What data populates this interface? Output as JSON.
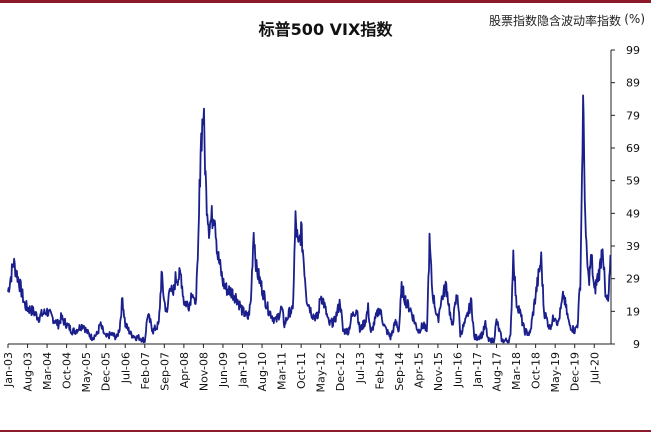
{
  "chart_data": {
    "type": "line",
    "title": "标普500 VIX指数",
    "subtitle": "股票指数隐含波动率指数",
    "unit": "(%)",
    "xlabel": "",
    "ylabel": "",
    "ylim": [
      9,
      99
    ],
    "yticks": [
      9,
      19,
      29,
      39,
      49,
      59,
      69,
      79,
      89,
      99
    ],
    "x_tick_labels": [
      "Jan-03",
      "Aug-03",
      "Mar-04",
      "Oct-04",
      "May-05",
      "Dec-05",
      "Jul-06",
      "Feb-07",
      "Sep-07",
      "Apr-08",
      "Nov-08",
      "Jun-09",
      "Jan-10",
      "Aug-10",
      "Mar-11",
      "Oct-11",
      "May-12",
      "Dec-12",
      "Jul-13",
      "Feb-14",
      "Sep-14",
      "Apr-15",
      "Nov-15",
      "Jun-16",
      "Jan-17",
      "Aug-17",
      "Mar-18",
      "Oct-18",
      "May-19",
      "Dec-19",
      "Jul-20"
    ],
    "grid": false,
    "legend": "none",
    "colors": {
      "line": "#1a1f8c",
      "axis": "#222222",
      "accent": "#8b1a2a"
    },
    "series": [
      {
        "values": [
          [
            "Jan-03",
            25
          ],
          [
            "Mar-03",
            34
          ],
          [
            "May-03",
            28
          ],
          [
            "Jul-03",
            21
          ],
          [
            "Aug-03",
            20
          ],
          [
            "Oct-03",
            19
          ],
          [
            "Dec-03",
            17
          ],
          [
            "Jan-04",
            18
          ],
          [
            "Mar-04",
            19
          ],
          [
            "May-04",
            17
          ],
          [
            "Jul-04",
            15
          ],
          [
            "Aug-04",
            17
          ],
          [
            "Oct-04",
            15
          ],
          [
            "Dec-04",
            13
          ],
          [
            "Jan-05",
            13
          ],
          [
            "Apr-05",
            15
          ],
          [
            "May-05",
            13
          ],
          [
            "Jul-05",
            11
          ],
          [
            "Sep-05",
            12
          ],
          [
            "Oct-05",
            15
          ],
          [
            "Dec-05",
            11
          ],
          [
            "Feb-06",
            12
          ],
          [
            "Apr-06",
            11
          ],
          [
            "May-06",
            14
          ],
          [
            "Jun-06",
            23
          ],
          [
            "Jul-06",
            15
          ],
          [
            "Sep-06",
            12
          ],
          [
            "Nov-06",
            11
          ],
          [
            "Dec-06",
            11
          ],
          [
            "Feb-07",
            10
          ],
          [
            "Mar-07",
            18
          ],
          [
            "May-07",
            13
          ],
          [
            "Jul-07",
            15
          ],
          [
            "Aug-07",
            30
          ],
          [
            "Sep-07",
            22
          ],
          [
            "Oct-07",
            18
          ],
          [
            "Nov-07",
            28
          ],
          [
            "Dec-07",
            23
          ],
          [
            "Jan-08",
            29
          ],
          [
            "Mar-08",
            30
          ],
          [
            "Apr-08",
            22
          ],
          [
            "Jun-08",
            21
          ],
          [
            "Jul-08",
            26
          ],
          [
            "Aug-08",
            20
          ],
          [
            "Sep-08",
            33
          ],
          [
            "Oct-08",
            70
          ],
          [
            "Nov-08",
            80
          ],
          [
            "Dec-08",
            55
          ],
          [
            "Jan-09",
            45
          ],
          [
            "Mar-09",
            50
          ],
          [
            "Apr-09",
            37
          ],
          [
            "Jun-09",
            28
          ],
          [
            "Jul-09",
            26
          ],
          [
            "Sep-09",
            25
          ],
          [
            "Nov-09",
            23
          ],
          [
            "Dec-09",
            21
          ],
          [
            "Jan-10",
            19
          ],
          [
            "Mar-10",
            17
          ],
          [
            "Apr-10",
            22
          ],
          [
            "May-10",
            44
          ],
          [
            "Jun-10",
            32
          ],
          [
            "Aug-10",
            26
          ],
          [
            "Oct-10",
            20
          ],
          [
            "Dec-10",
            17
          ],
          [
            "Jan-11",
            16
          ],
          [
            "Mar-11",
            20
          ],
          [
            "Apr-11",
            15
          ],
          [
            "Jun-11",
            19
          ],
          [
            "Jul-11",
            19
          ],
          [
            "Aug-11",
            47
          ],
          [
            "Sep-11",
            38
          ],
          [
            "Oct-11",
            44
          ],
          [
            "Nov-11",
            34
          ],
          [
            "Dec-11",
            23
          ],
          [
            "Feb-12",
            18
          ],
          [
            "Apr-12",
            17
          ],
          [
            "May-12",
            24
          ],
          [
            "Jun-12",
            22
          ],
          [
            "Aug-12",
            15
          ],
          [
            "Oct-12",
            16
          ],
          [
            "Dec-12",
            22
          ],
          [
            "Jan-13",
            13
          ],
          [
            "Mar-13",
            13
          ],
          [
            "Apr-13",
            17
          ],
          [
            "Jun-13",
            20
          ],
          [
            "Jul-13",
            13
          ],
          [
            "Sep-13",
            16
          ],
          [
            "Oct-13",
            20
          ],
          [
            "Nov-13",
            12
          ],
          [
            "Dec-13",
            15
          ],
          [
            "Feb-14",
            20
          ],
          [
            "Apr-14",
            14
          ],
          [
            "Jun-14",
            11
          ],
          [
            "Aug-14",
            16
          ],
          [
            "Sep-14",
            13
          ],
          [
            "Oct-14",
            26
          ],
          [
            "Dec-14",
            21
          ],
          [
            "Jan-15",
            20
          ],
          [
            "Mar-15",
            15
          ],
          [
            "Apr-15",
            13
          ],
          [
            "Jun-15",
            15
          ],
          [
            "Jul-15",
            12
          ],
          [
            "Aug-15",
            40
          ],
          [
            "Sep-15",
            25
          ],
          [
            "Nov-15",
            16
          ],
          [
            "Dec-15",
            22
          ],
          [
            "Feb-16",
            27
          ],
          [
            "Apr-16",
            14
          ],
          [
            "Jun-16",
            25
          ],
          [
            "Jul-16",
            12
          ],
          [
            "Sep-16",
            16
          ],
          [
            "Nov-16",
            22
          ],
          [
            "Dec-16",
            11
          ],
          [
            "Jan-17",
            11
          ],
          [
            "Mar-17",
            12
          ],
          [
            "Apr-17",
            15
          ],
          [
            "May-17",
            10
          ],
          [
            "Jul-17",
            10
          ],
          [
            "Aug-17",
            16
          ],
          [
            "Oct-17",
            10
          ],
          [
            "Dec-17",
            10
          ],
          [
            "Jan-18",
            11
          ],
          [
            "Feb-18",
            37
          ],
          [
            "Mar-18",
            22
          ],
          [
            "Apr-18",
            20
          ],
          [
            "Jun-18",
            13
          ],
          [
            "Aug-18",
            12
          ],
          [
            "Oct-18",
            24
          ],
          [
            "Dec-18",
            35
          ],
          [
            "Jan-19",
            19
          ],
          [
            "Mar-19",
            14
          ],
          [
            "May-19",
            18
          ],
          [
            "Jun-19",
            15
          ],
          [
            "Aug-19",
            24
          ],
          [
            "Oct-19",
            15
          ],
          [
            "Dec-19",
            13
          ],
          [
            "Jan-20",
            15
          ],
          [
            "Feb-20",
            28
          ],
          [
            "Mar-20",
            82
          ],
          [
            "Apr-20",
            40
          ],
          [
            "May-20",
            28
          ],
          [
            "Jun-20",
            36
          ],
          [
            "Jul-20",
            25
          ],
          [
            "Sep-20",
            32
          ],
          [
            "Oct-20",
            40
          ],
          [
            "Nov-20",
            23
          ],
          [
            "Dec-20",
            22
          ],
          [
            "Jan-21",
            36
          ]
        ]
      }
    ]
  }
}
